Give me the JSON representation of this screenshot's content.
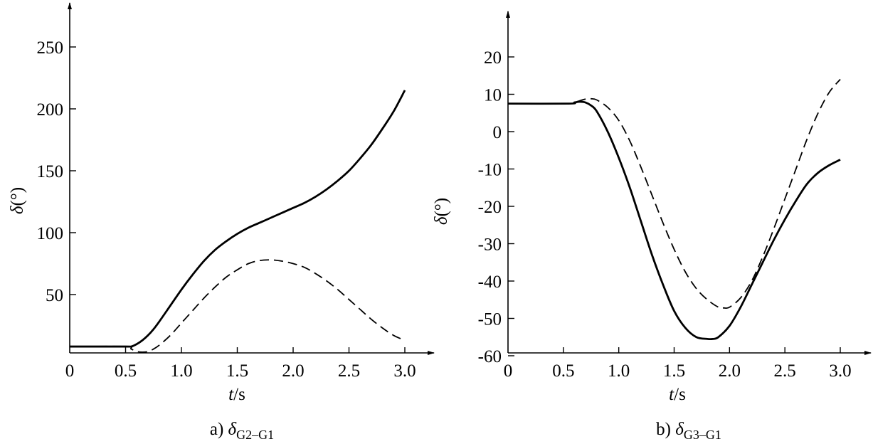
{
  "chart_data": [
    {
      "type": "line",
      "caption": {
        "prefix": "a)",
        "symbol": "δ",
        "subscript": "G2–G1"
      },
      "xlabel": {
        "var": "t",
        "unit": "/s"
      },
      "ylabel": {
        "var": "δ",
        "unit": "(°)"
      },
      "xlim": [
        0,
        3.15
      ],
      "ylim": [
        0,
        275
      ],
      "x_ticks": [
        0,
        0.5,
        1.0,
        1.5,
        2.0,
        2.5,
        3.0
      ],
      "x_tick_labels": [
        "0",
        "0.5",
        "1.0",
        "1.5",
        "2.0",
        "2.5",
        "3.0"
      ],
      "y_ticks": [
        50,
        100,
        150,
        200,
        250
      ],
      "y_tick_labels": [
        "50",
        "100",
        "150",
        "200",
        "250"
      ],
      "series": [
        {
          "style": "solid",
          "x": [
            0,
            0.5,
            0.55,
            0.6,
            0.65,
            0.7,
            0.75,
            0.8,
            0.9,
            1.0,
            1.1,
            1.2,
            1.3,
            1.4,
            1.5,
            1.6,
            1.7,
            1.8,
            1.9,
            2.0,
            2.1,
            2.2,
            2.3,
            2.4,
            2.5,
            2.6,
            2.7,
            2.8,
            2.9,
            3.0
          ],
          "y": [
            8,
            8,
            8,
            10,
            13,
            17,
            22,
            28,
            41,
            54,
            66,
            77,
            86,
            93,
            99,
            104,
            108,
            112,
            116,
            120,
            124,
            129,
            135,
            142,
            150,
            160,
            171,
            184,
            198,
            215
          ]
        },
        {
          "style": "dashed",
          "x": [
            0,
            0.5,
            0.55,
            0.6,
            0.65,
            0.7,
            0.75,
            0.8,
            0.9,
            1.0,
            1.1,
            1.2,
            1.3,
            1.4,
            1.5,
            1.6,
            1.7,
            1.8,
            1.9,
            2.0,
            2.1,
            2.2,
            2.3,
            2.4,
            2.5,
            2.6,
            2.7,
            2.8,
            2.9,
            3.0
          ],
          "y": [
            8,
            8,
            6,
            4,
            3.5,
            4,
            6,
            9,
            17,
            27,
            37,
            47,
            56,
            64,
            70,
            75,
            77.5,
            78,
            77,
            75,
            72,
            67,
            61,
            54,
            46,
            38,
            30,
            23,
            17,
            13
          ]
        }
      ]
    },
    {
      "type": "line",
      "caption": {
        "prefix": "b)",
        "symbol": "δ",
        "subscript": "G3–G1"
      },
      "xlabel": {
        "var": "t",
        "unit": "/s"
      },
      "ylabel": {
        "var": "δ",
        "unit": "(°)"
      },
      "xlim": [
        0,
        3.2
      ],
      "ylim": [
        -60,
        30
      ],
      "x_ticks": [
        0,
        0.5,
        1.0,
        1.5,
        2.0,
        2.5,
        3.0
      ],
      "x_tick_labels": [
        "0",
        "0.5",
        "1.0",
        "1.5",
        "2.0",
        "2.5",
        "3.0"
      ],
      "y_ticks": [
        -60,
        -50,
        -40,
        -30,
        -20,
        -10,
        0,
        10,
        20
      ],
      "y_tick_labels": [
        "-60",
        "-50",
        "-40",
        "-30",
        "-20",
        "-10",
        "0",
        "10",
        "20"
      ],
      "series": [
        {
          "style": "solid",
          "x": [
            0,
            0.55,
            0.6,
            0.65,
            0.7,
            0.75,
            0.8,
            0.9,
            1.0,
            1.1,
            1.2,
            1.3,
            1.4,
            1.5,
            1.6,
            1.7,
            1.8,
            1.85,
            1.9,
            2.0,
            2.1,
            2.2,
            2.3,
            2.4,
            2.5,
            2.6,
            2.7,
            2.8,
            2.9,
            3.0
          ],
          "y": [
            7.5,
            7.5,
            7.8,
            8,
            7.8,
            7,
            5.5,
            0,
            -7,
            -15,
            -24,
            -33,
            -41,
            -48,
            -52.5,
            -55,
            -55.5,
            -55.5,
            -55,
            -52,
            -47,
            -41,
            -35,
            -29,
            -23.5,
            -18.5,
            -14,
            -11,
            -9,
            -7.5
          ]
        },
        {
          "style": "dashed",
          "x": [
            0,
            0.55,
            0.6,
            0.65,
            0.7,
            0.75,
            0.8,
            0.9,
            1.0,
            1.1,
            1.2,
            1.3,
            1.4,
            1.5,
            1.6,
            1.7,
            1.8,
            1.9,
            1.95,
            2.0,
            2.1,
            2.2,
            2.3,
            2.4,
            2.5,
            2.6,
            2.7,
            2.8,
            2.9,
            3.0
          ],
          "y": [
            7.5,
            7.5,
            7.8,
            8.3,
            8.7,
            8.8,
            8.5,
            6.5,
            3,
            -2.5,
            -9.5,
            -17,
            -24.5,
            -31.5,
            -37.5,
            -42,
            -45,
            -47,
            -47.2,
            -47,
            -44.5,
            -40,
            -33.5,
            -26,
            -18,
            -10,
            -2,
            5,
            10.5,
            14
          ]
        }
      ]
    }
  ]
}
